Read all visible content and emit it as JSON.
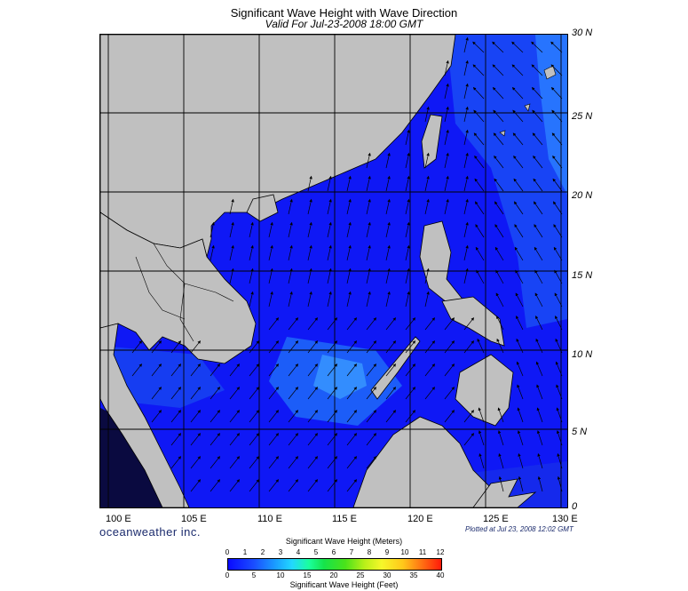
{
  "header": {
    "title": "Significant Wave Height with Wave Direction",
    "subtitle": "Valid For Jul-23-2008 18:00 GMT"
  },
  "map": {
    "lat_labels": [
      "30 N",
      "25 N",
      "20 N",
      "15 N",
      "10 N",
      "5 N",
      "0"
    ],
    "lon_labels": [
      "100 E",
      "105 E",
      "110 E",
      "115 E",
      "120 E",
      "125 E",
      "130 E"
    ],
    "extent": {
      "lon_min": 99,
      "lon_max": 130,
      "lat_min": 0,
      "lat_max": 30
    },
    "colors": {
      "land": "#c0c0c0",
      "deep_blue": "#0a0aff",
      "sea_blue": "#1a3cff",
      "light_blue": "#2a80ff",
      "dark": "#0a0a40"
    }
  },
  "footer": {
    "brand": "oceanweather inc.",
    "plotted": "Plotted at Jul 23, 2008 12:02 GMT"
  },
  "legend": {
    "title_meters": "Significant Wave Height (Meters)",
    "title_feet": "Significant Wave Height (Feet)",
    "meter_ticks": [
      "0",
      "1",
      "2",
      "3",
      "4",
      "5",
      "6",
      "7",
      "8",
      "9",
      "10",
      "11",
      "12"
    ],
    "feet_ticks": [
      "0",
      "5",
      "10",
      "15",
      "20",
      "25",
      "30",
      "35",
      "40"
    ]
  }
}
